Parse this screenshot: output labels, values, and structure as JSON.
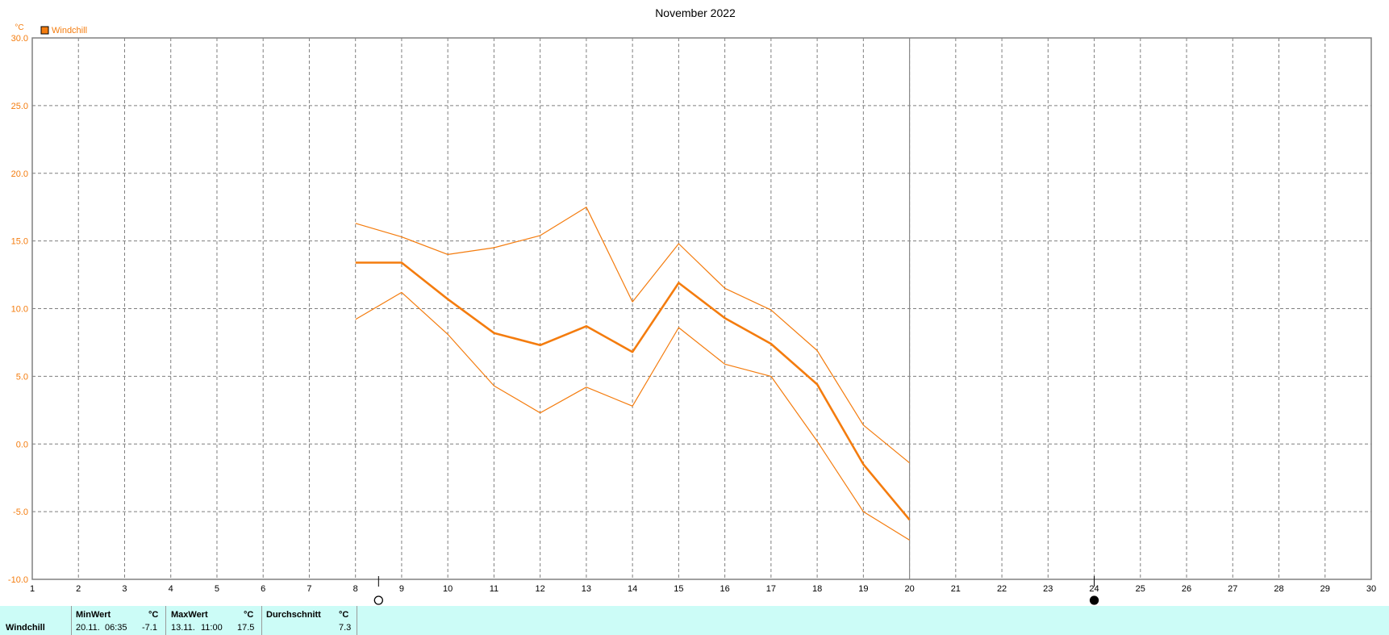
{
  "colors": {
    "series": "#f47c0e",
    "grid": "#7f7f7f",
    "axis": "#808080",
    "footer_bg": "#ccfcf7"
  },
  "chart_data": {
    "type": "line",
    "title": "November 2022",
    "ylabel": "°C",
    "legend": "Windchill",
    "legend_position": "top-left",
    "xlim": [
      1,
      30
    ],
    "ylim": [
      -10,
      30
    ],
    "x_ticks": [
      1,
      2,
      3,
      4,
      5,
      6,
      7,
      8,
      9,
      10,
      11,
      12,
      13,
      14,
      15,
      16,
      17,
      18,
      19,
      20,
      21,
      22,
      23,
      24,
      25,
      26,
      27,
      28,
      29,
      30
    ],
    "y_ticks": [
      "-10.0",
      "-5.0",
      "0.0",
      "5.0",
      "10.0",
      "15.0",
      "20.0",
      "25.0",
      "30.0"
    ],
    "grid": true,
    "current_day_marker": 20,
    "moon_phases": [
      {
        "day": 8.5,
        "phase": "full"
      },
      {
        "day": 24,
        "phase": "new"
      }
    ],
    "x": [
      8,
      9,
      10,
      11,
      12,
      13,
      14,
      15,
      16,
      17,
      18,
      19,
      20
    ],
    "series": [
      {
        "name": "Windchill",
        "role": "max",
        "values": [
          16.3,
          15.3,
          14.0,
          14.5,
          15.4,
          17.5,
          10.5,
          14.8,
          11.5,
          9.9,
          6.9,
          1.4,
          -1.4
        ]
      },
      {
        "name": "Windchill",
        "role": "avg",
        "values": [
          13.4,
          13.4,
          10.7,
          8.2,
          7.3,
          8.7,
          6.8,
          11.9,
          9.3,
          7.4,
          4.4,
          -1.5,
          -5.6
        ]
      },
      {
        "name": "Windchill",
        "role": "min",
        "values": [
          9.2,
          11.2,
          8.1,
          4.3,
          2.3,
          4.2,
          2.8,
          8.6,
          5.9,
          5.0,
          0.2,
          -5.0,
          -7.1
        ]
      }
    ]
  },
  "summary": {
    "label": "Windchill",
    "min": {
      "header": "MinWert",
      "unit": "°C",
      "date": "20.11.",
      "time": "06:35",
      "value": "-7.1"
    },
    "max": {
      "header": "MaxWert",
      "unit": "°C",
      "date": "13.11.",
      "time": "11:00",
      "value": "17.5"
    },
    "avg": {
      "header": "Durchschnitt",
      "unit": "°C",
      "value": "7.3"
    }
  }
}
